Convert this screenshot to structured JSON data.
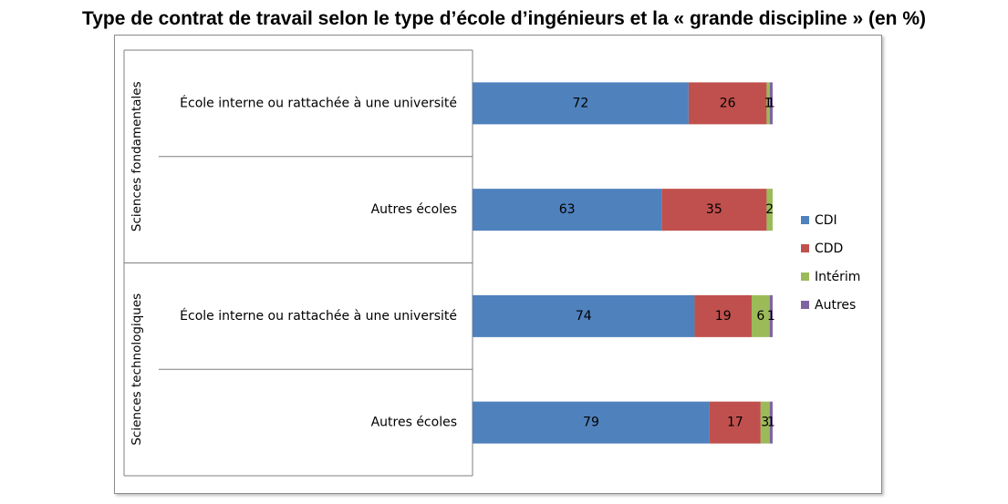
{
  "title": "Type de contrat de travail selon le type d’école d’ingénieurs et la « grande discipline » (en %)",
  "chart_data": {
    "type": "bar",
    "orientation": "horizontal",
    "stacked": true,
    "groups": [
      {
        "label": "Sciences fondamentales",
        "categories": [
          "École interne ou rattachée à une université",
          "Autres écoles"
        ]
      },
      {
        "label": "Sciences technologiques",
        "categories": [
          "École interne ou rattachée à une université",
          "Autres écoles"
        ]
      }
    ],
    "series": [
      {
        "name": "CDI",
        "color": "#4f81bd",
        "values": [
          72,
          63,
          74,
          79
        ]
      },
      {
        "name": "CDD",
        "color": "#c0504d",
        "values": [
          26,
          35,
          19,
          17
        ]
      },
      {
        "name": "Intérim",
        "color": "#9bbb59",
        "values": [
          1,
          2,
          6,
          3
        ]
      },
      {
        "name": "Autres",
        "color": "#8064a2",
        "values": [
          1,
          0,
          1,
          1
        ]
      }
    ],
    "data_labels": [
      [
        "72",
        "26",
        "1",
        "1"
      ],
      [
        "63",
        "35",
        "2",
        ""
      ],
      [
        "74",
        "19",
        "6",
        "1"
      ],
      [
        "79",
        "17",
        "3",
        "1"
      ]
    ],
    "xlim": [
      0,
      100
    ],
    "legend_position": "right",
    "grid": false
  }
}
